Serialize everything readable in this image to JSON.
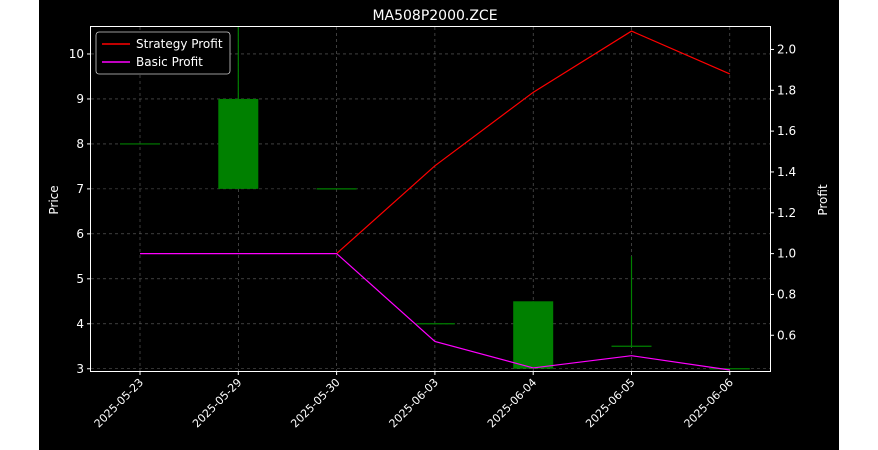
{
  "chart_data": {
    "type": "candlestick+line",
    "title": "MA508P2000.ZCE",
    "ylabel": "Price",
    "y2label": "Profit",
    "categories": [
      "2025-05-23",
      "2025-05-29",
      "2025-05-30",
      "2025-06-03",
      "2025-06-04",
      "2025-06-05",
      "2025-06-06"
    ],
    "ylim": [
      2.95,
      10.6
    ],
    "yticks": [
      3,
      4,
      5,
      6,
      7,
      8,
      9,
      10
    ],
    "y2lim": [
      0.425,
      2.11
    ],
    "y2ticks": [
      "0.6",
      "0.8",
      "1.0",
      "1.2",
      "1.4",
      "1.6",
      "1.8",
      "2.0"
    ],
    "grid": true,
    "legend_position": "top-left",
    "candles": [
      {
        "date": "2025-05-23",
        "open": 8.0,
        "high": 8.0,
        "low": 8.0,
        "close": 8.0
      },
      {
        "date": "2025-05-29",
        "open": 7.0,
        "high": 10.6,
        "low": 7.0,
        "close": 9.0
      },
      {
        "date": "2025-05-30",
        "open": 7.0,
        "high": 7.0,
        "low": 7.0,
        "close": 7.0
      },
      {
        "date": "2025-06-03",
        "open": 4.0,
        "high": 4.0,
        "low": 4.0,
        "close": 4.0
      },
      {
        "date": "2025-06-04",
        "open": 3.0,
        "high": 4.5,
        "low": 3.0,
        "close": 4.5
      },
      {
        "date": "2025-06-05",
        "open": 3.5,
        "high": 5.5,
        "low": 3.5,
        "close": 3.5
      },
      {
        "date": "2025-06-06",
        "open": 3.0,
        "high": 3.0,
        "low": 3.0,
        "close": 3.0
      }
    ],
    "series": [
      {
        "name": "Strategy Profit",
        "color": "#ff0000",
        "axis": "right",
        "start_index": 2,
        "values": [
          null,
          null,
          1.0,
          1.43,
          1.79,
          2.09,
          1.88
        ]
      },
      {
        "name": "Basic Profit",
        "color": "#ff00ff",
        "axis": "right",
        "start_index": 0,
        "values": [
          1.0,
          1.0,
          1.0,
          0.57,
          0.44,
          0.5,
          0.43
        ]
      }
    ],
    "colors": {
      "up": "#008000",
      "down": "#ff0000",
      "background": "#000000",
      "grid": "#808080",
      "axes": "#ffffff"
    }
  }
}
